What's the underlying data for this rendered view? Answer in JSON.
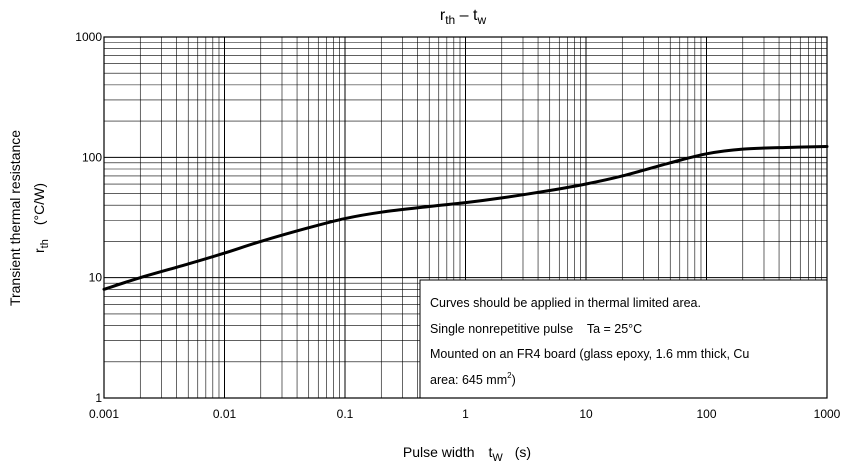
{
  "chart_data": {
    "type": "line",
    "title": {
      "main": "r",
      "main_sub": "th",
      "sep": " – ",
      "second": "t",
      "second_sub": "w"
    },
    "xlabel": {
      "text": "Pulse width",
      "sym": "t",
      "sym_sub": "W",
      "unit": "(s)"
    },
    "ylabel": {
      "line1": "Transient thermal resistance",
      "sym": "r",
      "sym_sub": "th",
      "unit": "(°C/W)"
    },
    "xscale": "log",
    "yscale": "log",
    "xlim": [
      0.001,
      1000
    ],
    "ylim": [
      1,
      1000
    ],
    "grid": true,
    "x_tick_labels": [
      "0.001",
      "0.01",
      "0.1",
      "1",
      "10",
      "100",
      "1000"
    ],
    "y_tick_labels": [
      "1",
      "10",
      "100",
      "1000"
    ],
    "series": [
      {
        "x": [
          0.001,
          0.002,
          0.005,
          0.01,
          0.02,
          0.05,
          0.1,
          0.2,
          0.5,
          1,
          2,
          5,
          10,
          20,
          50,
          100,
          200,
          500,
          1000
        ],
        "y": [
          8,
          10,
          13,
          16,
          20,
          26,
          31,
          35,
          39,
          42,
          46,
          53,
          60,
          70,
          90,
          107,
          117,
          121,
          123
        ]
      }
    ],
    "annotation": {
      "line1": "Curves should be applied in thermal limited area.",
      "line2": "Single nonrepetitive pulse    Ta = 25°C",
      "line3": "Mounted on an FR4 board (glass epoxy, 1.6 mm thick, Cu",
      "line4_prefix": "area: 645 mm",
      "line4_sup": "2",
      "line4_suffix": ")"
    }
  }
}
